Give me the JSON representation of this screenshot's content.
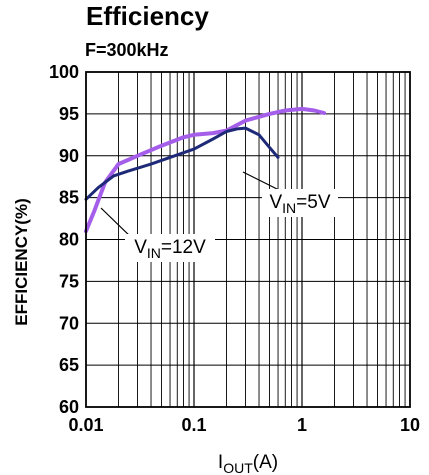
{
  "chart_data": {
    "type": "line",
    "title": "Efficiency",
    "subtitle": "F=300kHz",
    "xlabel": {
      "main": "I",
      "sub": "OUT",
      "unit": "(A)"
    },
    "ylabel": "EFFICIENCY(%)",
    "x_scale": "log",
    "xlim": [
      0.01,
      10
    ],
    "ylim": [
      60,
      100
    ],
    "x_ticks": [
      {
        "value": 0.01,
        "label": "0.01"
      },
      {
        "value": 0.1,
        "label": "0.1"
      },
      {
        "value": 1,
        "label": "1"
      },
      {
        "value": 10,
        "label": "10"
      }
    ],
    "y_ticks": [
      {
        "value": 60,
        "label": "60"
      },
      {
        "value": 65,
        "label": "65"
      },
      {
        "value": 70,
        "label": "70"
      },
      {
        "value": 75,
        "label": "75"
      },
      {
        "value": 80,
        "label": "80"
      },
      {
        "value": 85,
        "label": "85"
      },
      {
        "value": 90,
        "label": "90"
      },
      {
        "value": 95,
        "label": "95"
      },
      {
        "value": 100,
        "label": "100"
      }
    ],
    "grid": true,
    "series": [
      {
        "name": "V_IN=5V",
        "color": "#a55eea",
        "points": [
          [
            0.01,
            81.0
          ],
          [
            0.012,
            83.5
          ],
          [
            0.015,
            86.8
          ],
          [
            0.02,
            89.0
          ],
          [
            0.03,
            90.0
          ],
          [
            0.05,
            91.2
          ],
          [
            0.08,
            92.2
          ],
          [
            0.1,
            92.5
          ],
          [
            0.15,
            92.7
          ],
          [
            0.2,
            93.0
          ],
          [
            0.3,
            94.2
          ],
          [
            0.5,
            95.0
          ],
          [
            0.7,
            95.4
          ],
          [
            1.0,
            95.6
          ],
          [
            1.3,
            95.4
          ],
          [
            1.6,
            95.1
          ]
        ]
      },
      {
        "name": "V_IN=12V",
        "color": "#1e2a78",
        "points": [
          [
            0.01,
            84.8
          ],
          [
            0.013,
            86.2
          ],
          [
            0.018,
            87.6
          ],
          [
            0.025,
            88.2
          ],
          [
            0.04,
            89.0
          ],
          [
            0.06,
            89.8
          ],
          [
            0.1,
            90.8
          ],
          [
            0.15,
            92.0
          ],
          [
            0.2,
            92.9
          ],
          [
            0.25,
            93.2
          ],
          [
            0.3,
            93.3
          ],
          [
            0.4,
            92.5
          ],
          [
            0.5,
            91.0
          ],
          [
            0.6,
            89.8
          ]
        ]
      }
    ],
    "annotations": [
      {
        "main": "V",
        "sub": "IN",
        "rest": "=5V",
        "series": "V_IN=5V"
      },
      {
        "main": "V",
        "sub": "IN",
        "rest": "=12V",
        "series": "V_IN=12V"
      }
    ]
  }
}
